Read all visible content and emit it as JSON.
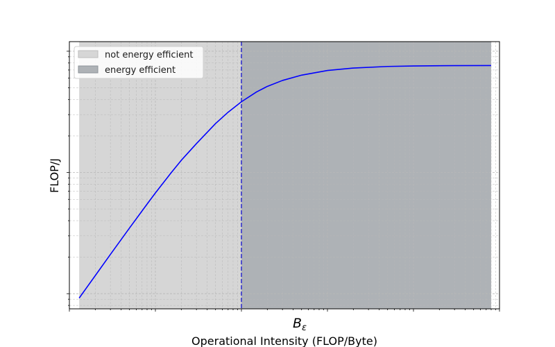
{
  "chart_data": {
    "type": "line",
    "title": "",
    "xlabel": "Operational Intensity (FLOP/Byte)",
    "ylabel": "FLOP/J",
    "xscale": "log",
    "yscale": "log",
    "grid": true,
    "legend_position": "top-left",
    "xlim": [
      0.1,
      10000
    ],
    "ylim": [
      0.0075,
      1.2
    ],
    "x_ticks": [
      {
        "value": 10,
        "label": "B_ε"
      }
    ],
    "threshold": 10,
    "regions": [
      {
        "name": "not energy efficient",
        "from": 0.13,
        "to": 10,
        "color": "#d6d6d6"
      },
      {
        "name": "energy efficient",
        "from": 10,
        "to": 8000,
        "color": "#aeb2b6"
      }
    ],
    "series": [
      {
        "color": "#0000ff",
        "x": [
          0.13,
          0.2,
          0.3,
          0.5,
          0.8,
          1,
          1.5,
          2,
          3,
          5,
          7,
          10,
          15,
          20,
          30,
          50,
          100,
          200,
          500,
          1000,
          3000,
          8000
        ],
        "y": [
          0.0092,
          0.0141,
          0.0211,
          0.0348,
          0.0548,
          0.0678,
          0.098,
          0.126,
          0.173,
          0.253,
          0.314,
          0.383,
          0.462,
          0.513,
          0.574,
          0.635,
          0.694,
          0.727,
          0.749,
          0.756,
          0.761,
          0.762
        ]
      }
    ]
  }
}
